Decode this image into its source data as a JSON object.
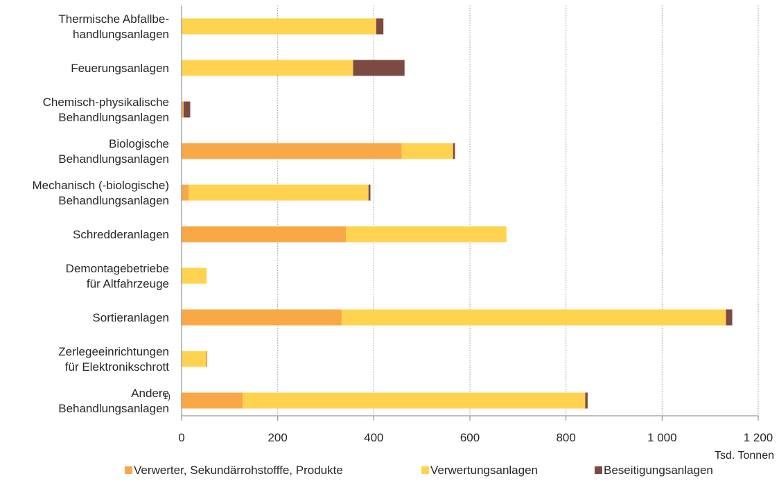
{
  "chart_data": {
    "type": "bar",
    "orientation": "horizontal",
    "stacked": true,
    "categories": [
      [
        "Thermische Abfallbe-",
        "handlungsanlagen"
      ],
      [
        "Feuerungsanlagen"
      ],
      [
        "Chemisch-physikalische",
        "Behandlungsanlagen"
      ],
      [
        "Biologische",
        "Behandlungsanlagen"
      ],
      [
        "Mechanisch (-biologische)",
        "Behandlungsanlagen"
      ],
      [
        "Schredderanlagen"
      ],
      [
        "Demontagebetriebe",
        "für Altfahrzeuge"
      ],
      [
        "Sortieranlagen"
      ],
      [
        "Zerlegeeinrichtungen",
        "für Elektronikschrott"
      ],
      [
        "Andere",
        "Behandlungsanlagen"
      ]
    ],
    "category_footnotes": [
      "",
      "",
      "",
      "",
      "",
      "",
      "",
      "",
      "",
      "1)"
    ],
    "series": [
      {
        "name": "Verwerter, Sekundärrohstofffe, Produkte",
        "color": "#F9A847",
        "values": [
          0,
          0,
          3,
          458,
          15,
          342,
          0,
          333,
          0,
          127
        ]
      },
      {
        "name": "Verwertungsanlagen",
        "color": "#FFD350",
        "values": [
          405,
          357,
          1,
          107,
          374,
          334,
          52,
          800,
          52,
          713
        ]
      },
      {
        "name": "Beseitigungsanlagen",
        "color": "#7B4A42",
        "values": [
          15,
          107,
          14,
          4,
          4,
          0,
          0,
          13,
          1,
          5
        ]
      }
    ],
    "xlim": [
      0,
      1200
    ],
    "xticks": [
      0,
      200,
      400,
      600,
      800,
      1000,
      1200
    ],
    "xtick_labels": [
      "0",
      "200",
      "400",
      "600",
      "800",
      "1 000",
      "1 200"
    ],
    "xlabel": "Tsd. Tonnen",
    "grid": "vertical-dotted",
    "legend_position": "bottom"
  }
}
